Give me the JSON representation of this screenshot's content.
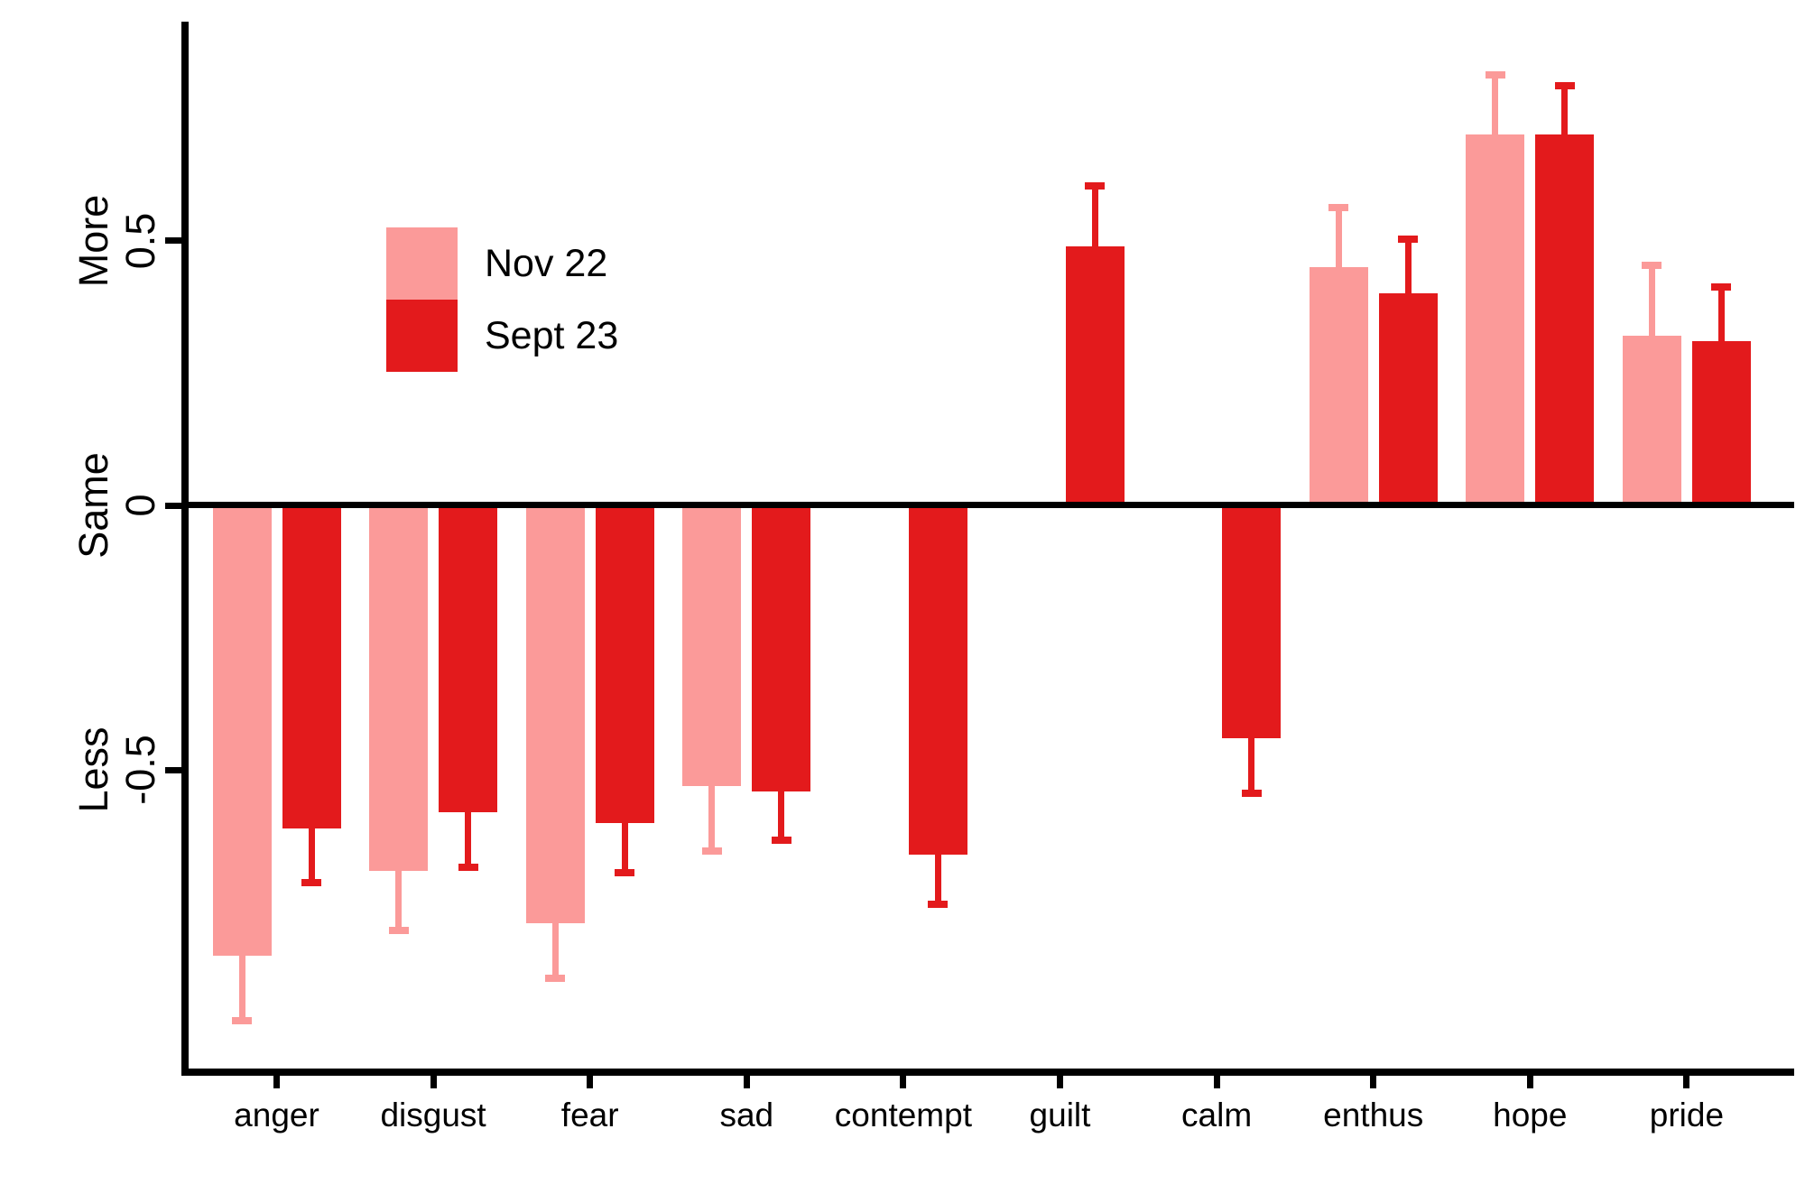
{
  "chart_data": {
    "type": "bar",
    "title": "",
    "xlabel": "",
    "ylabel": "",
    "categories": [
      "anger",
      "disgust",
      "fear",
      "sad",
      "contempt",
      "guilt",
      "calm",
      "enthus",
      "hope",
      "pride"
    ],
    "series": [
      {
        "name": "Nov 22",
        "color": "#FB9A99",
        "values": [
          -0.85,
          -0.69,
          -0.79,
          -0.53,
          null,
          null,
          null,
          0.45,
          0.7,
          0.32
        ],
        "errors": [
          0.13,
          0.12,
          0.11,
          0.13,
          null,
          null,
          null,
          0.12,
          0.12,
          0.14
        ]
      },
      {
        "name": "Sept 23",
        "color": "#E31A1C",
        "values": [
          -0.61,
          -0.58,
          -0.6,
          -0.54,
          -0.66,
          0.49,
          -0.44,
          0.4,
          0.7,
          0.31
        ],
        "errors": [
          0.11,
          0.11,
          0.1,
          0.1,
          0.1,
          0.12,
          0.11,
          0.11,
          0.1,
          0.11
        ]
      }
    ],
    "y_axis": {
      "ticks": [
        {
          "value": 0.5,
          "label": "0.5",
          "band": "More"
        },
        {
          "value": 0,
          "label": "0",
          "band": "Same"
        },
        {
          "value": -0.5,
          "label": "-0.5",
          "band": "Less"
        }
      ],
      "ylim": [
        -1.07,
        0.91
      ]
    },
    "error_bars": "one-sided, extending outward (away from zero) with end caps",
    "baseline_at_zero": true,
    "grid": false,
    "legend_position": "top-left inside plot area",
    "colors": {
      "axis": "#000000",
      "background": "#FFFFFF"
    }
  }
}
